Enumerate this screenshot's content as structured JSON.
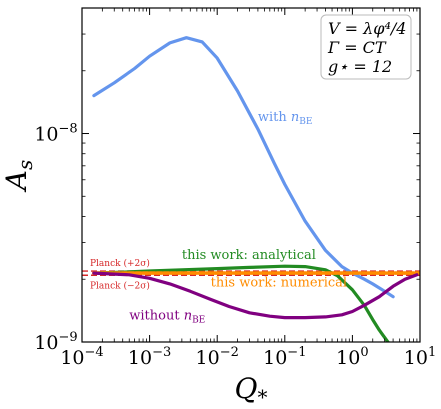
{
  "chart_data": {
    "type": "line",
    "xscale": "log",
    "yscale": "log",
    "xlim": [
      0.0001,
      10
    ],
    "ylim": [
      1e-09,
      4e-08
    ],
    "xlabel": "Q*",
    "ylabel": "As",
    "x_ticks": [
      {
        "value": 0.0001,
        "base": "10",
        "exp": "−4"
      },
      {
        "value": 0.001,
        "base": "10",
        "exp": "−3"
      },
      {
        "value": 0.01,
        "base": "10",
        "exp": "−2"
      },
      {
        "value": 0.1,
        "base": "10",
        "exp": "−1"
      },
      {
        "value": 1,
        "base": "10",
        "exp": "0"
      },
      {
        "value": 10,
        "base": "10",
        "exp": "1"
      }
    ],
    "y_ticks": [
      {
        "value": 1e-09,
        "base": "10",
        "exp": "−9"
      },
      {
        "value": 1e-08,
        "base": "10",
        "exp": "−8"
      }
    ],
    "legend_box": {
      "position": "top-right",
      "lines": [
        "V = λφ⁴/4",
        "Γ = CT",
        "g⋆ = 12"
      ]
    },
    "series": [
      {
        "name": "with nBE",
        "color": "#6495ED",
        "x": [
          0.00015,
          0.0003,
          0.0006,
          0.001,
          0.002,
          0.0035,
          0.006,
          0.01,
          0.02,
          0.04,
          0.07,
          0.1,
          0.2,
          0.4,
          0.7,
          1.0,
          1.5,
          2.0,
          3.0,
          4.0
        ],
        "y": [
          1.52e-08,
          1.75e-08,
          2.05e-08,
          2.35e-08,
          2.72e-08,
          2.88e-08,
          2.75e-08,
          2.3e-08,
          1.6e-08,
          1.05e-08,
          7.2e-09,
          5.7e-09,
          3.8e-09,
          2.75e-09,
          2.3e-09,
          2.14e-09,
          2e-09,
          1.9e-09,
          1.75e-09,
          1.65e-09
        ]
      },
      {
        "name": "this work: analytical",
        "color": "#228B22",
        "x": [
          0.00015,
          0.0005,
          0.001,
          0.003,
          0.01,
          0.03,
          0.1,
          0.2,
          0.4,
          0.6,
          1.0,
          1.5,
          2.0,
          2.5,
          3.0,
          3.6
        ],
        "y": [
          2.14e-09,
          2.17e-09,
          2.19e-09,
          2.22e-09,
          2.25e-09,
          2.28e-09,
          2.31e-09,
          2.3e-09,
          2.22e-09,
          2.08e-09,
          1.78e-09,
          1.5e-09,
          1.28e-09,
          1.14e-09,
          1.05e-09,
          9.7e-10
        ]
      },
      {
        "name": "this work: numerical",
        "color": "#FF8C00",
        "x": [
          0.00015,
          0.001,
          0.01,
          0.1,
          1.0,
          10
        ],
        "y": [
          2.14e-09,
          2.14e-09,
          2.14e-09,
          2.14e-09,
          2.14e-09,
          2.14e-09
        ]
      },
      {
        "name": "without nBE",
        "color": "#800080",
        "x": [
          0.00015,
          0.0005,
          0.001,
          0.002,
          0.004,
          0.008,
          0.015,
          0.03,
          0.06,
          0.1,
          0.2,
          0.4,
          0.7,
          1.0,
          1.5,
          2.5,
          4.0,
          6.0,
          9.0
        ],
        "y": [
          2.14e-09,
          2.1e-09,
          2.02e-09,
          1.9e-09,
          1.75e-09,
          1.6e-09,
          1.48e-09,
          1.38e-09,
          1.33e-09,
          1.31e-09,
          1.31e-09,
          1.32e-09,
          1.35e-09,
          1.4e-09,
          1.5e-09,
          1.65e-09,
          1.85e-09,
          2e-09,
          2.1e-09
        ]
      }
    ],
    "reference_lines": [
      {
        "label": "Planck (+2σ)",
        "y": 2.19e-09,
        "color": "#D62728"
      },
      {
        "label": "Planck (−2σ)",
        "y": 2.09e-09,
        "color": "#D62728"
      }
    ],
    "annotations": [
      {
        "text": "with",
        "sub": "n",
        "subscript": "BE",
        "color": "#6495ED",
        "x": 0.04,
        "y": 1.15e-08
      },
      {
        "text": "this work: analytical",
        "color": "#228B22",
        "x": 0.003,
        "y": 2.5e-09
      },
      {
        "text": "this work: numerical",
        "color": "#FF8C00",
        "x": 0.008,
        "y": 1.85e-09
      },
      {
        "text": "without",
        "sub": "n",
        "subscript": "BE",
        "color": "#800080",
        "x": 0.0005,
        "y": 1.28e-09
      }
    ]
  }
}
